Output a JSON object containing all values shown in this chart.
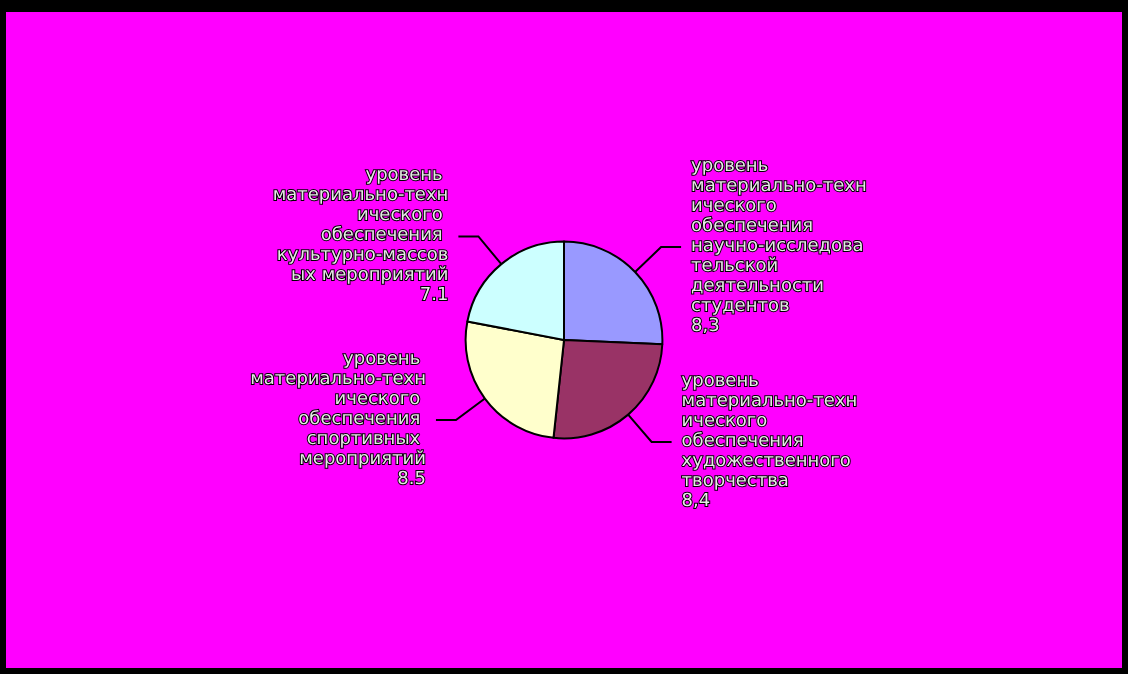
{
  "chart_data": {
    "type": "pie",
    "categories": [
      "уровень материально-технического обеспечения научно-исследовательской деятельности студентов",
      "уровень материально-технического обеспечения художественного творчества",
      "уровень материально-технического обеспечения спортивных мероприятий",
      "уровень материально-технического обеспечения культурно-массовых мероприятий"
    ],
    "values": [
      8.3,
      8.4,
      8.5,
      7.1
    ],
    "value_labels": [
      "8,3",
      "8,4",
      "8.5",
      "7.1"
    ],
    "colors": [
      "#9999ff",
      "#993366",
      "#ffffcc",
      "#ccffff"
    ]
  }
}
